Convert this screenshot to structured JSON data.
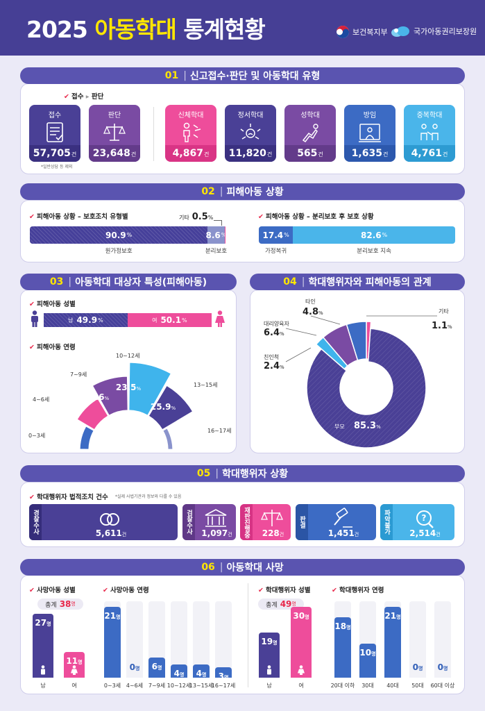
{
  "header": {
    "year": "2025",
    "title_highlight": "아동학대",
    "title_rest": "통계현황",
    "logo1": "보건복지부",
    "logo2": "국가아동권리보장원"
  },
  "s1": {
    "num": "01",
    "title": "신고접수·판단 및 아동학대 유형",
    "legend_a": "접수",
    "legend_b": "판단",
    "note": "*일반상담 등 제외",
    "unit": "건",
    "boxes": [
      {
        "label": "접수",
        "value": "57,705",
        "color": "#4a4096",
        "bottom": "#3a3080",
        "icon": "doc-icon"
      },
      {
        "label": "판단",
        "value": "23,648",
        "color": "#7a4ba3",
        "bottom": "#633b8a",
        "icon": "scale-icon"
      },
      {
        "label": "신체학대",
        "value": "4,867",
        "color": "#ee4d9b",
        "bottom": "#d93485",
        "icon": "body-icon"
      },
      {
        "label": "정서학대",
        "value": "11,820",
        "color": "#4a4096",
        "bottom": "#3a3080",
        "icon": "emotion-icon"
      },
      {
        "label": "성학대",
        "value": "565",
        "color": "#7a4ba3",
        "bottom": "#633b8a",
        "icon": "hand-icon"
      },
      {
        "label": "방임",
        "value": "1,635",
        "color": "#3c6bc4",
        "bottom": "#2c58ad",
        "icon": "neglect-icon"
      },
      {
        "label": "중복학대",
        "value": "4,761",
        "color": "#4ab5ea",
        "bottom": "#2d9bd2",
        "icon": "multi-icon"
      }
    ]
  },
  "s2": {
    "num": "02",
    "title": "피해아동 상황",
    "left_label": "피해아동 상황 – 보호조치 유형별",
    "right_label": "피해아동 상황 – 분리보호 후 보호 상황",
    "left": [
      {
        "name": "원가정보호",
        "value": "90.9"
      },
      {
        "name": "분리보호",
        "value": "8.6"
      },
      {
        "name": "기타",
        "value": "0.5"
      }
    ],
    "right": [
      {
        "name": "가정복귀",
        "value": "17.4"
      },
      {
        "name": "분리보호 지속",
        "value": "82.6"
      }
    ],
    "pct": "%"
  },
  "s3": {
    "num": "03",
    "title": "아동학대 대상자 특성(피해아동)",
    "gender_label": "피해아동 성별",
    "age_label": "피해아동 연령",
    "male": {
      "name": "남",
      "value": "49.9"
    },
    "female": {
      "name": "여",
      "value": "50.1"
    },
    "pct": "%"
  },
  "s4": {
    "num": "04",
    "title": "학대행위자와 피해아동의 관계",
    "pct": "%"
  },
  "s5": {
    "num": "05",
    "title": "학대행위자 상황",
    "label": "학대행위자 법적조치 건수",
    "note": "*실제 사법기관과 정보와 다를 수 있음",
    "unit": "건",
    "items": [
      {
        "tag": "경찰수사",
        "value": "5,611"
      },
      {
        "tag": "검찰수사",
        "value": "1,097"
      },
      {
        "tag": "재판진행중",
        "value": "228"
      },
      {
        "tag": "판결",
        "value": "1,451"
      },
      {
        "tag": "파악불가",
        "value": "2,514"
      }
    ]
  },
  "s6": {
    "num": "06",
    "title": "아동학대 사망",
    "unit": "명",
    "g1_label": "사망아동 성별",
    "g1_total_label": "총계",
    "g1_total": "38",
    "g2_label": "사망아동 연령",
    "g3_label": "학대행위자 성별",
    "g3_total_label": "총계",
    "g3_total": "49",
    "g4_label": "학대행위자 연령"
  },
  "chart_data": [
    {
      "type": "bar",
      "title": "신고접수·판단 및 아동학대 유형",
      "categories": [
        "접수",
        "판단",
        "신체학대",
        "정서학대",
        "성학대",
        "방임",
        "중복학대"
      ],
      "values": [
        57705,
        23648,
        4867,
        11820,
        565,
        1635,
        4761
      ]
    },
    {
      "type": "bar",
      "title": "피해아동 상황 – 보호조치 유형별",
      "categories": [
        "원가정보호",
        "분리보호",
        "기타"
      ],
      "values": [
        90.9,
        8.6,
        0.5
      ]
    },
    {
      "type": "bar",
      "title": "피해아동 상황 – 분리보호 후 보호 상황",
      "categories": [
        "가정복귀",
        "분리보호 지속"
      ],
      "values": [
        17.4,
        82.6
      ]
    },
    {
      "type": "bar",
      "title": "피해아동 성별",
      "categories": [
        "남",
        "여"
      ],
      "values": [
        49.9,
        50.1
      ]
    },
    {
      "type": "pie",
      "title": "피해아동 연령",
      "categories": [
        "0~3세",
        "4~6세",
        "7~9세",
        "10~12세",
        "13~15세",
        "16~17세"
      ],
      "values": [
        11.2,
        11.5,
        17.6,
        23.5,
        25.9,
        10.3
      ],
      "colors": [
        "#3c6bc4",
        "#ee4d9b",
        "#7a4ba3",
        "#3fb4ec",
        "#4a4096",
        "#8a93cc"
      ]
    },
    {
      "type": "pie",
      "title": "학대행위자와 피해아동의 관계",
      "categories": [
        "부모",
        "친인척",
        "대리양육자",
        "타인",
        "기타"
      ],
      "values": [
        85.3,
        2.4,
        6.4,
        4.8,
        1.1
      ],
      "colors": [
        "#4a4096",
        "#3fb4ec",
        "#7a4ba3",
        "#3c6bc4",
        "#ee4d9b"
      ]
    },
    {
      "type": "bar",
      "title": "학대행위자 법적조치 건수",
      "categories": [
        "경찰수사",
        "검찰수사",
        "재판진행중",
        "판결",
        "파악불가"
      ],
      "values": [
        5611,
        1097,
        228,
        1451,
        2514
      ]
    },
    {
      "type": "bar",
      "title": "사망아동 성별",
      "categories": [
        "남",
        "여"
      ],
      "values": [
        27,
        11
      ],
      "ylim": [
        0,
        30
      ]
    },
    {
      "type": "bar",
      "title": "사망아동 연령",
      "categories": [
        "0~3세",
        "4~6세",
        "7~9세",
        "10~12세",
        "13~15세",
        "16~17세"
      ],
      "values": [
        21,
        0,
        6,
        4,
        4,
        3
      ],
      "ylim": [
        0,
        21
      ]
    },
    {
      "type": "bar",
      "title": "학대행위자 성별",
      "categories": [
        "남",
        "여"
      ],
      "values": [
        19,
        30
      ],
      "ylim": [
        0,
        30
      ]
    },
    {
      "type": "bar",
      "title": "학대행위자 연령",
      "categories": [
        "20대 이하",
        "30대",
        "40대",
        "50대",
        "60대 이상"
      ],
      "values": [
        18,
        10,
        21,
        0,
        0
      ],
      "ylim": [
        0,
        21
      ]
    }
  ]
}
